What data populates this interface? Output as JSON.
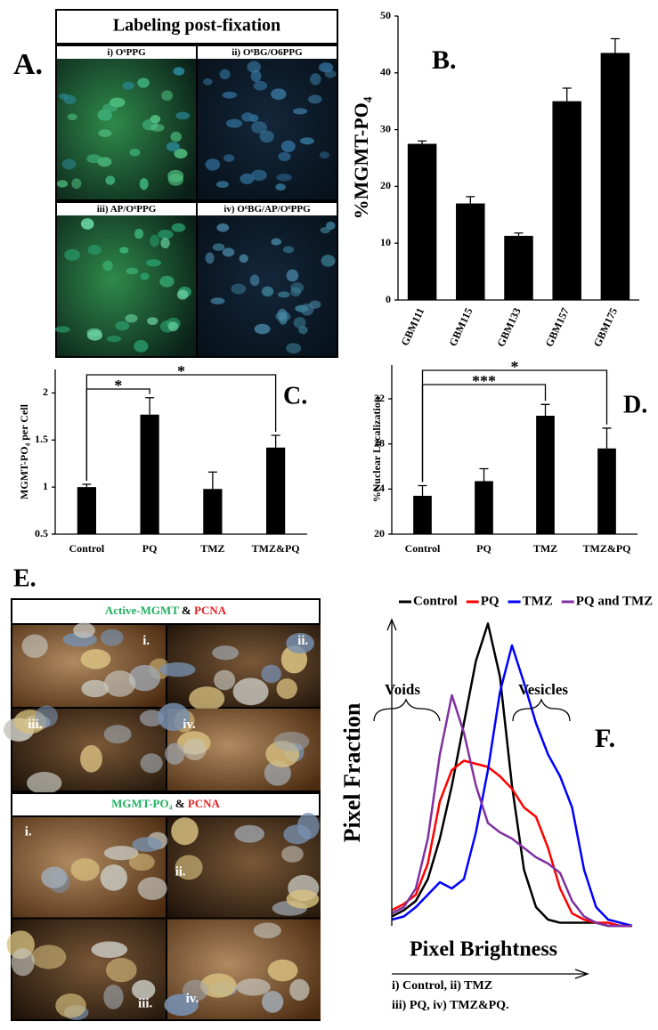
{
  "panel_a": {
    "label": "A.",
    "title": "Labeling post-fixation",
    "images": [
      "i) O⁶PPG",
      "ii) O⁶BG/O6PPG",
      "iii) AP/O⁶PPG",
      "iv) O⁶BG/AP/O⁶PPG"
    ]
  },
  "panel_e": {
    "label": "E.",
    "groups": [
      {
        "title_parts": [
          "Active-MGMT",
          " & ",
          "PCNA"
        ],
        "images": [
          "i.",
          "ii.",
          "iii.",
          "iv."
        ]
      },
      {
        "title_parts": [
          "MGMT-PO₄",
          " & ",
          "PCNA"
        ],
        "images": [
          "i.",
          "ii.",
          "iii.",
          "iv."
        ]
      }
    ],
    "caption": [
      "i) Control, ii) TMZ",
      "iii) PQ, iv) TMZ&PQ."
    ]
  },
  "chart_data": [
    {
      "type": "bar",
      "panel_label": "B.",
      "ylabel": "%MGMT-PO₄",
      "categories": [
        "GBM111",
        "GBM115",
        "GBM133",
        "GBM157",
        "GBM175"
      ],
      "values": [
        27.5,
        17,
        11.3,
        35,
        43.5
      ],
      "errors": [
        0.5,
        1.2,
        0.5,
        2.3,
        2.5
      ],
      "color": "#000000",
      "ylim": [
        0,
        50
      ],
      "yticks": [
        0,
        10,
        20,
        30,
        40,
        50
      ],
      "annotations": []
    },
    {
      "type": "bar",
      "panel_label": "C.",
      "ylabel": "MGMT-PO₄ per Cell",
      "categories": [
        "Control",
        "PQ",
        "TMZ",
        "TMZ&PQ"
      ],
      "values": [
        1.0,
        1.77,
        0.98,
        1.42
      ],
      "errors": [
        0.03,
        0.18,
        0.18,
        0.13
      ],
      "color": "#000000",
      "ylim": [
        0.5,
        2.25
      ],
      "yticks": [
        0.5,
        1,
        1.5,
        2
      ],
      "annotations": [
        {
          "text": "*",
          "categories": [
            "Control",
            "PQ"
          ]
        },
        {
          "text": "*",
          "categories": [
            "Control",
            "TMZ&PQ"
          ]
        }
      ]
    },
    {
      "type": "bar",
      "panel_label": "D.",
      "ylabel": "%Nuclear Localization",
      "categories": [
        "Control",
        "PQ",
        "TMZ",
        "TMZ&PQ"
      ],
      "values": [
        23.4,
        24.7,
        30.5,
        27.6
      ],
      "errors": [
        0.9,
        1.1,
        1.0,
        1.8
      ],
      "color": "#000000",
      "ylim": [
        20,
        35
      ],
      "yticks": [
        20,
        24,
        28,
        32
      ],
      "annotations": [
        {
          "text": "***",
          "categories": [
            "Control",
            "TMZ"
          ]
        },
        {
          "text": "*",
          "categories": [
            "Control",
            "TMZ&PQ"
          ]
        }
      ]
    },
    {
      "type": "line",
      "panel_label": "F.",
      "xlabel": "Pixel Brightness",
      "ylabel": "Pixel Fraction",
      "annotations": [
        "Voids",
        "Vesicles"
      ],
      "xlim": [
        0,
        100
      ],
      "ylim": [
        0,
        100
      ],
      "x": [
        0,
        5,
        10,
        15,
        20,
        25,
        30,
        35,
        40,
        45,
        50,
        55,
        60,
        65,
        70,
        75,
        80,
        85,
        90,
        95,
        100
      ],
      "series": [
        {
          "name": "Control",
          "color": "#000000",
          "values": [
            3,
            5,
            8,
            15,
            28,
            45,
            65,
            85,
            97,
            80,
            45,
            18,
            6,
            2,
            1,
            1,
            1,
            1,
            0,
            0,
            0
          ]
        },
        {
          "name": "PQ",
          "color": "#ff0000",
          "values": [
            5,
            7,
            10,
            20,
            40,
            50,
            53,
            52,
            51,
            48,
            44,
            38,
            35,
            25,
            12,
            4,
            2,
            1,
            1,
            0,
            0
          ]
        },
        {
          "name": "TMZ",
          "color": "#0000ff",
          "values": [
            2,
            3,
            6,
            10,
            14,
            12,
            15,
            30,
            50,
            75,
            90,
            78,
            65,
            55,
            48,
            38,
            18,
            6,
            2,
            1,
            0
          ]
        },
        {
          "name": "PQ and TMZ",
          "color": "#8030a0",
          "values": [
            4,
            6,
            12,
            28,
            55,
            74,
            62,
            45,
            33,
            30,
            28,
            25,
            22,
            20,
            17,
            8,
            3,
            1,
            0,
            0,
            0
          ]
        }
      ]
    }
  ]
}
